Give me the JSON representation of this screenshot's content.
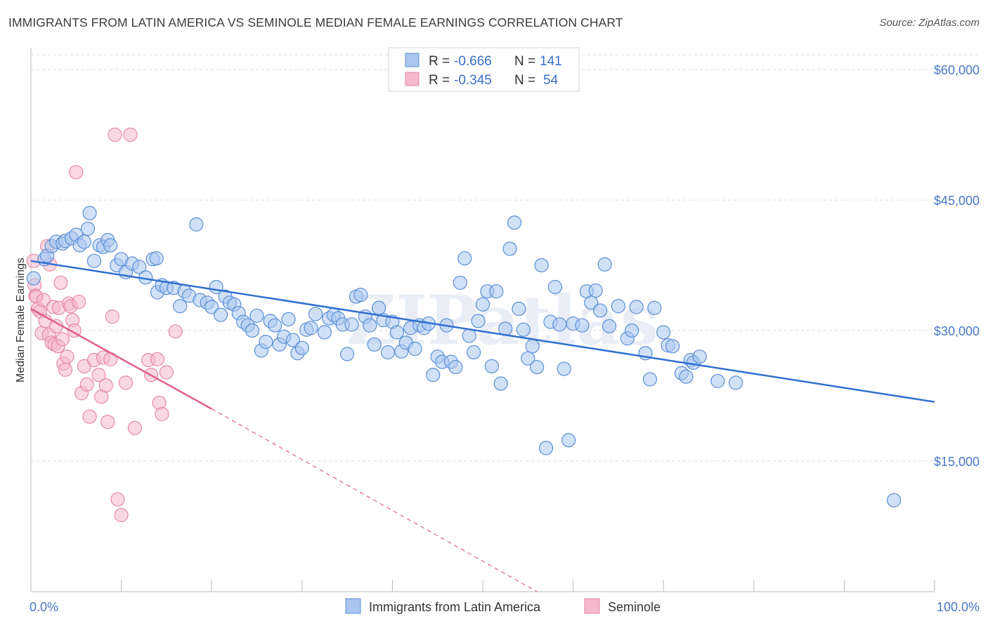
{
  "header": {
    "title": "IMMIGRANTS FROM LATIN AMERICA VS SEMINOLE MEDIAN FEMALE EARNINGS CORRELATION CHART",
    "source": "Source: ZipAtlas.com"
  },
  "watermark": "ZIPatlas",
  "colors": {
    "blue_fill": "#a9c6f0",
    "blue_stroke": "#5b8fd6",
    "blue_line": "#2f6fcf",
    "pink_fill": "#f5b8cc",
    "pink_stroke": "#e58aa8",
    "pink_line": "#e0608a",
    "tick_label": "#4a78c8",
    "grid": "#dcdcdc"
  },
  "legend": {
    "rows": [
      {
        "r_label": "R =",
        "r_value": "-0.666",
        "n_label": "N =",
        "n_value": "141"
      },
      {
        "r_label": "R =",
        "r_value": "-0.345",
        "n_label": "N =",
        "n_value": "54"
      }
    ]
  },
  "bottom_legend": [
    "Immigrants from Latin America",
    "Seminole"
  ],
  "chart_data": {
    "type": "scatter",
    "title": "IMMIGRANTS FROM LATIN AMERICA VS SEMINOLE MEDIAN FEMALE EARNINGS CORRELATION CHART",
    "xlabel": "",
    "ylabel": "Median Female Earnings",
    "x_tick_labels": [
      "0.0%",
      "100.0%"
    ],
    "y_tick_labels": [
      "$15,000",
      "$30,000",
      "$45,000",
      "$60,000"
    ],
    "y_ticks": [
      15000,
      30000,
      45000,
      60000
    ],
    "xlim": [
      0,
      100
    ],
    "ylim": [
      0,
      62500
    ],
    "grid": true,
    "legend_position": "top-center",
    "series": [
      {
        "name": "Immigrants from Latin America",
        "r": -0.666,
        "n": 141,
        "trend": {
          "x": [
            0,
            100
          ],
          "y": [
            38000,
            21800
          ]
        },
        "points": [
          [
            0.3,
            36000
          ],
          [
            1.5,
            38200
          ],
          [
            1.8,
            38600
          ],
          [
            2.3,
            39700
          ],
          [
            2.8,
            40200
          ],
          [
            3.5,
            40000
          ],
          [
            3.8,
            40300
          ],
          [
            4.5,
            40600
          ],
          [
            5,
            41000
          ],
          [
            5.4,
            39800
          ],
          [
            5.9,
            40200
          ],
          [
            6.3,
            41700
          ],
          [
            6.5,
            43500
          ],
          [
            7,
            38000
          ],
          [
            7.6,
            39800
          ],
          [
            8,
            39600
          ],
          [
            8.5,
            40400
          ],
          [
            8.8,
            39800
          ],
          [
            9.5,
            37500
          ],
          [
            10,
            38200
          ],
          [
            10.5,
            36700
          ],
          [
            11.2,
            37700
          ],
          [
            12,
            37300
          ],
          [
            12.7,
            36100
          ],
          [
            13.5,
            38200
          ],
          [
            13.9,
            38300
          ],
          [
            14,
            34400
          ],
          [
            14.5,
            35200
          ],
          [
            15,
            34900
          ],
          [
            15.8,
            34900
          ],
          [
            16.5,
            32800
          ],
          [
            17,
            34500
          ],
          [
            17.5,
            34000
          ],
          [
            18.3,
            42200
          ],
          [
            18.7,
            33500
          ],
          [
            19.5,
            33200
          ],
          [
            20,
            32700
          ],
          [
            20.5,
            35000
          ],
          [
            21,
            31800
          ],
          [
            21.5,
            33900
          ],
          [
            22,
            33200
          ],
          [
            22.5,
            33000
          ],
          [
            23,
            32000
          ],
          [
            23.5,
            31000
          ],
          [
            24,
            30600
          ],
          [
            24.5,
            30000
          ],
          [
            25,
            31700
          ],
          [
            25.5,
            27700
          ],
          [
            26,
            28700
          ],
          [
            26.5,
            31100
          ],
          [
            27,
            30600
          ],
          [
            27.5,
            28400
          ],
          [
            28,
            29300
          ],
          [
            28.5,
            31300
          ],
          [
            29,
            28900
          ],
          [
            29.5,
            27400
          ],
          [
            30,
            28000
          ],
          [
            30.5,
            30100
          ],
          [
            31,
            30300
          ],
          [
            31.5,
            31900
          ],
          [
            32.5,
            29800
          ],
          [
            33,
            31400
          ],
          [
            33.5,
            31800
          ],
          [
            34,
            31400
          ],
          [
            34.5,
            30700
          ],
          [
            35,
            27300
          ],
          [
            35.5,
            30700
          ],
          [
            36,
            33900
          ],
          [
            36.5,
            34100
          ],
          [
            37,
            31600
          ],
          [
            37.5,
            30600
          ],
          [
            38,
            28400
          ],
          [
            38.5,
            32600
          ],
          [
            39,
            31200
          ],
          [
            39.5,
            27500
          ],
          [
            40,
            31000
          ],
          [
            40.5,
            29800
          ],
          [
            41,
            27600
          ],
          [
            41.5,
            28600
          ],
          [
            42,
            30300
          ],
          [
            42.5,
            27900
          ],
          [
            43,
            30600
          ],
          [
            43.5,
            30300
          ],
          [
            44,
            30800
          ],
          [
            44.5,
            24900
          ],
          [
            45,
            27000
          ],
          [
            45.5,
            26400
          ],
          [
            46,
            30600
          ],
          [
            46.5,
            26400
          ],
          [
            47,
            25800
          ],
          [
            47.5,
            35500
          ],
          [
            48,
            38300
          ],
          [
            48.5,
            29400
          ],
          [
            49,
            27500
          ],
          [
            49.5,
            31100
          ],
          [
            50,
            33000
          ],
          [
            50.5,
            34500
          ],
          [
            51,
            25900
          ],
          [
            51.5,
            34500
          ],
          [
            52,
            23900
          ],
          [
            52.5,
            30200
          ],
          [
            53,
            39400
          ],
          [
            53.5,
            42400
          ],
          [
            54,
            32500
          ],
          [
            54.5,
            30100
          ],
          [
            55,
            26800
          ],
          [
            55.5,
            28200
          ],
          [
            56,
            25800
          ],
          [
            56.5,
            37500
          ],
          [
            57,
            16500
          ],
          [
            57.5,
            31000
          ],
          [
            58,
            35000
          ],
          [
            58.5,
            30700
          ],
          [
            59,
            25600
          ],
          [
            59.5,
            17400
          ],
          [
            60,
            30800
          ],
          [
            61,
            30600
          ],
          [
            61.5,
            34500
          ],
          [
            62,
            33200
          ],
          [
            62.5,
            34600
          ],
          [
            63,
            32300
          ],
          [
            63.5,
            37600
          ],
          [
            64,
            30500
          ],
          [
            65,
            32800
          ],
          [
            66,
            29100
          ],
          [
            66.5,
            30000
          ],
          [
            67,
            32700
          ],
          [
            68,
            27400
          ],
          [
            68.5,
            24400
          ],
          [
            69,
            32600
          ],
          [
            70,
            29800
          ],
          [
            70.5,
            28300
          ],
          [
            71,
            28200
          ],
          [
            72,
            25100
          ],
          [
            72.5,
            24700
          ],
          [
            73,
            26600
          ],
          [
            73.3,
            26300
          ],
          [
            74,
            27000
          ],
          [
            76,
            24200
          ],
          [
            78,
            24000
          ],
          [
            95.5,
            10500
          ]
        ]
      },
      {
        "name": "Seminole",
        "r": -0.345,
        "n": 54,
        "trend": {
          "x": [
            0,
            20
          ],
          "y": [
            32500,
            21000
          ]
        },
        "trend_dashed": {
          "x": [
            20,
            56
          ],
          "y": [
            21000,
            0
          ]
        },
        "points": [
          [
            0.3,
            38000
          ],
          [
            0.4,
            35200
          ],
          [
            0.5,
            34000
          ],
          [
            0.6,
            33900
          ],
          [
            0.8,
            32500
          ],
          [
            1,
            32200
          ],
          [
            1.2,
            29700
          ],
          [
            1.4,
            33500
          ],
          [
            1.6,
            31100
          ],
          [
            1.8,
            39700
          ],
          [
            2,
            29500
          ],
          [
            2.1,
            37600
          ],
          [
            2.3,
            28600
          ],
          [
            2.5,
            32700
          ],
          [
            2.6,
            28400
          ],
          [
            2.8,
            30500
          ],
          [
            3,
            28200
          ],
          [
            3.1,
            32600
          ],
          [
            3.3,
            35500
          ],
          [
            3.5,
            29000
          ],
          [
            3.6,
            26200
          ],
          [
            3.8,
            25500
          ],
          [
            4,
            27000
          ],
          [
            4.2,
            33100
          ],
          [
            4.4,
            32800
          ],
          [
            4.6,
            31200
          ],
          [
            4.8,
            30000
          ],
          [
            5,
            48200
          ],
          [
            5.3,
            33300
          ],
          [
            5.6,
            22800
          ],
          [
            5.9,
            25900
          ],
          [
            6.2,
            23800
          ],
          [
            6.5,
            20100
          ],
          [
            7,
            26600
          ],
          [
            7.5,
            24900
          ],
          [
            7.8,
            22400
          ],
          [
            8,
            26900
          ],
          [
            8.3,
            23700
          ],
          [
            8.5,
            19500
          ],
          [
            8.8,
            26700
          ],
          [
            9,
            31600
          ],
          [
            9.3,
            52500
          ],
          [
            9.6,
            10600
          ],
          [
            10,
            8800
          ],
          [
            10.5,
            24000
          ],
          [
            11,
            52500
          ],
          [
            11.5,
            18800
          ],
          [
            13,
            26600
          ],
          [
            13.3,
            24900
          ],
          [
            14,
            26700
          ],
          [
            14.2,
            21700
          ],
          [
            14.5,
            20400
          ],
          [
            15,
            25200
          ],
          [
            16,
            29900
          ]
        ]
      }
    ]
  }
}
